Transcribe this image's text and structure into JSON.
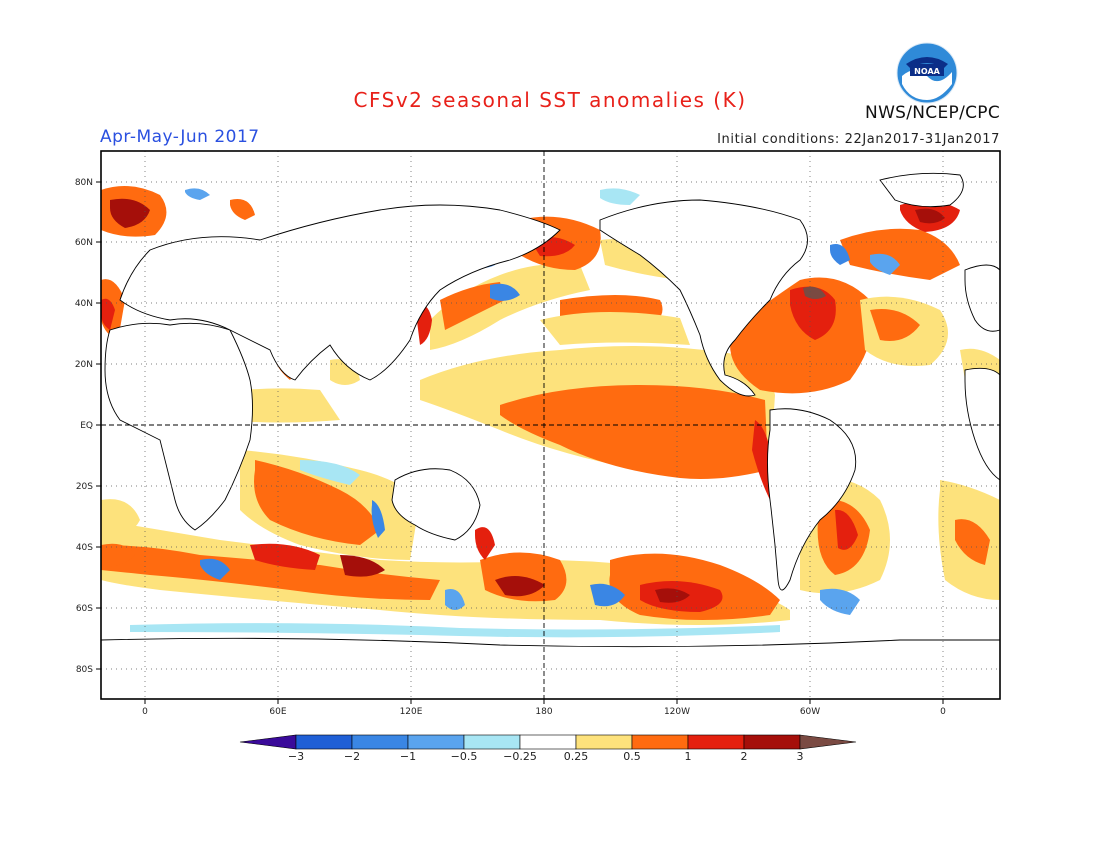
{
  "header": {
    "title": "CFSv2 seasonal SST anomalies (K)",
    "season": "Apr-May-Jun 2017",
    "initial_conditions": "Initial conditions: 22Jan2017-31Jan2017",
    "agency": "NWS/NCEP/CPC",
    "logo_text": "NOAA"
  },
  "axes": {
    "lat_labels": [
      "80N",
      "60N",
      "40N",
      "20N",
      "EQ",
      "20S",
      "40S",
      "60S",
      "80S"
    ],
    "lon_labels": [
      "0",
      "60E",
      "120E",
      "180",
      "120W",
      "60W",
      "0"
    ]
  },
  "colorbar": {
    "ticks": [
      "−3",
      "−2",
      "−1",
      "−0.5",
      "−0.25",
      "0.25",
      "0.5",
      "1",
      "2",
      "3"
    ],
    "colors": [
      "#3a0a9a",
      "#1f5fd6",
      "#3a86e4",
      "#5aa4ee",
      "#a8e6f4",
      "#ffffff",
      "#fde27c",
      "#ff6b10",
      "#e4200e",
      "#a50f0a",
      "#7a4a42"
    ]
  },
  "palette": {
    "ocean_neutral": "#ffffff",
    "weak_warm": "#fde27c",
    "warm": "#ff6b10",
    "strong_warm": "#e4200e",
    "very_strong_warm": "#a50f0a",
    "extreme_warm": "#7a4a42",
    "weak_cool": "#a8e6f4",
    "cool": "#5aa4ee",
    "strong_cool": "#3a86e4",
    "title_color": "#e8211a",
    "season_color": "#2a50e0"
  }
}
